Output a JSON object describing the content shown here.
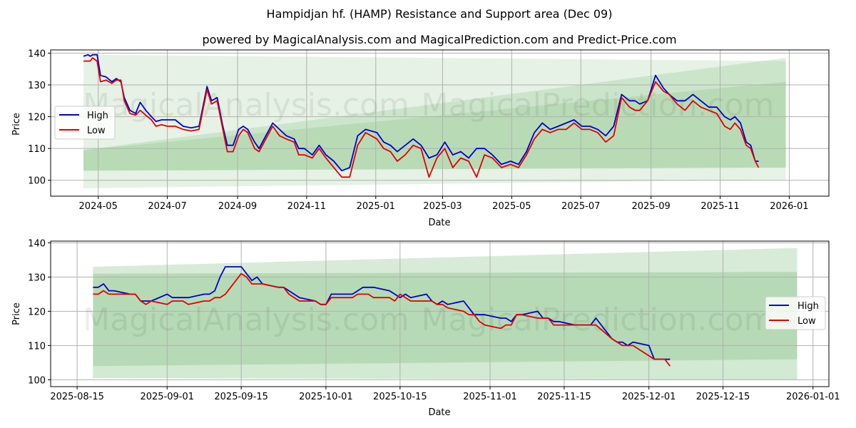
{
  "header": {
    "title": "Hampidjan hf. (HAMP) Resistance and Support area (Dec 09)",
    "subtitle": "powered by MagicalAnalysis.com and MagicalPrediction.com and Predict-Price.com"
  },
  "watermarks": [
    "MagicalAnalysis.com",
    "MagicalPrediction.com"
  ],
  "legend": {
    "high": "High",
    "low": "Low"
  },
  "colors": {
    "high": "#0000cc",
    "low": "#e00000",
    "band_outer": "#e3f0e2",
    "band_mid": "#cfe6cd",
    "band_inner": "#b9dbb8",
    "grid": "#b0b0b0"
  },
  "chart_data": [
    {
      "type": "line",
      "title": "Hampidjan hf. (HAMP) Resistance and Support area (Dec 09)",
      "xlabel": "Date",
      "ylabel": "Price",
      "ylim": [
        95,
        141
      ],
      "xlim": [
        "2024-03-20",
        "2026-02-05"
      ],
      "grid": true,
      "legend_position": "center left",
      "x_ticks": [
        "2024-05",
        "2024-07",
        "2024-09",
        "2024-11",
        "2025-01",
        "2025-03",
        "2025-05",
        "2025-07",
        "2025-09",
        "2025-11",
        "2026-01"
      ],
      "y_ticks": [
        100,
        110,
        120,
        130,
        140
      ],
      "series": [
        {
          "name": "High",
          "x": [
            "2024-04-18",
            "2024-04-22",
            "2024-04-24",
            "2024-04-26",
            "2024-04-30",
            "2024-05-03",
            "2024-05-08",
            "2024-05-13",
            "2024-05-17",
            "2024-05-21",
            "2024-05-24",
            "2024-05-29",
            "2024-06-03",
            "2024-06-07",
            "2024-06-12",
            "2024-06-17",
            "2024-06-21",
            "2024-06-26",
            "2024-07-01",
            "2024-07-08",
            "2024-07-15",
            "2024-07-22",
            "2024-07-29",
            "2024-08-05",
            "2024-08-09",
            "2024-08-14",
            "2024-08-19",
            "2024-08-23",
            "2024-08-28",
            "2024-09-02",
            "2024-09-06",
            "2024-09-10",
            "2024-09-16",
            "2024-09-20",
            "2024-09-26",
            "2024-10-02",
            "2024-10-08",
            "2024-10-14",
            "2024-10-21",
            "2024-10-25",
            "2024-10-30",
            "2024-11-06",
            "2024-11-12",
            "2024-11-18",
            "2024-11-25",
            "2024-12-02",
            "2024-12-09",
            "2024-12-16",
            "2024-12-23",
            "2025-01-02",
            "2025-01-08",
            "2025-01-14",
            "2025-01-20",
            "2025-01-27",
            "2025-02-03",
            "2025-02-10",
            "2025-02-17",
            "2025-02-24",
            "2025-03-03",
            "2025-03-10",
            "2025-03-17",
            "2025-03-24",
            "2025-03-31",
            "2025-04-07",
            "2025-04-14",
            "2025-04-22",
            "2025-04-30",
            "2025-05-07",
            "2025-05-14",
            "2025-05-21",
            "2025-05-28",
            "2025-06-04",
            "2025-06-11",
            "2025-06-18",
            "2025-06-25",
            "2025-07-02",
            "2025-07-09",
            "2025-07-16",
            "2025-07-23",
            "2025-07-30",
            "2025-08-06",
            "2025-08-13",
            "2025-08-18",
            "2025-08-22",
            "2025-08-29",
            "2025-09-05",
            "2025-09-12",
            "2025-09-17",
            "2025-09-24",
            "2025-10-01",
            "2025-10-08",
            "2025-10-15",
            "2025-10-22",
            "2025-10-29",
            "2025-11-05",
            "2025-11-10",
            "2025-11-14",
            "2025-11-19",
            "2025-11-24",
            "2025-11-28",
            "2025-12-02",
            "2025-12-05"
          ],
          "values": [
            139,
            139.5,
            139,
            139.5,
            139.5,
            133,
            132.5,
            131,
            132,
            131,
            126,
            122,
            121,
            124.5,
            122,
            120,
            118.5,
            119,
            119,
            119,
            117,
            116.5,
            117,
            129.5,
            125,
            126,
            117,
            111,
            111,
            116,
            117,
            116,
            112,
            110,
            114,
            118,
            116,
            114,
            113,
            110,
            110,
            108,
            111,
            108,
            106,
            103,
            104,
            114,
            116,
            115,
            112,
            111,
            109,
            111,
            113,
            111,
            107,
            108,
            112,
            108,
            109,
            107,
            110,
            110,
            108,
            105,
            106,
            105,
            109,
            115,
            118,
            116,
            117,
            118,
            119,
            117,
            117,
            116,
            114,
            117,
            127,
            125,
            125,
            124,
            125,
            133,
            129,
            127,
            125,
            125,
            127,
            125,
            123,
            123,
            120,
            119,
            120,
            118,
            112,
            111,
            106,
            106
          ]
        },
        {
          "name": "Low",
          "x": [
            "2024-04-18",
            "2024-04-22",
            "2024-04-24",
            "2024-04-26",
            "2024-04-30",
            "2024-05-03",
            "2024-05-08",
            "2024-05-13",
            "2024-05-17",
            "2024-05-21",
            "2024-05-24",
            "2024-05-29",
            "2024-06-03",
            "2024-06-07",
            "2024-06-12",
            "2024-06-17",
            "2024-06-21",
            "2024-06-26",
            "2024-07-01",
            "2024-07-08",
            "2024-07-15",
            "2024-07-22",
            "2024-07-29",
            "2024-08-05",
            "2024-08-09",
            "2024-08-14",
            "2024-08-19",
            "2024-08-23",
            "2024-08-28",
            "2024-09-02",
            "2024-09-06",
            "2024-09-10",
            "2024-09-16",
            "2024-09-20",
            "2024-09-26",
            "2024-10-02",
            "2024-10-08",
            "2024-10-14",
            "2024-10-21",
            "2024-10-25",
            "2024-10-30",
            "2024-11-06",
            "2024-11-12",
            "2024-11-18",
            "2024-11-25",
            "2024-12-02",
            "2024-12-09",
            "2024-12-16",
            "2024-12-23",
            "2025-01-02",
            "2025-01-08",
            "2025-01-14",
            "2025-01-20",
            "2025-01-27",
            "2025-02-03",
            "2025-02-10",
            "2025-02-17",
            "2025-02-24",
            "2025-03-03",
            "2025-03-10",
            "2025-03-17",
            "2025-03-24",
            "2025-03-31",
            "2025-04-07",
            "2025-04-14",
            "2025-04-22",
            "2025-04-30",
            "2025-05-07",
            "2025-05-14",
            "2025-05-21",
            "2025-05-28",
            "2025-06-04",
            "2025-06-11",
            "2025-06-18",
            "2025-06-25",
            "2025-07-02",
            "2025-07-09",
            "2025-07-16",
            "2025-07-23",
            "2025-07-30",
            "2025-08-06",
            "2025-08-13",
            "2025-08-18",
            "2025-08-22",
            "2025-08-29",
            "2025-09-05",
            "2025-09-12",
            "2025-09-17",
            "2025-09-24",
            "2025-10-01",
            "2025-10-08",
            "2025-10-15",
            "2025-10-22",
            "2025-10-29",
            "2025-11-05",
            "2025-11-10",
            "2025-11-14",
            "2025-11-19",
            "2025-11-24",
            "2025-11-28",
            "2025-12-02",
            "2025-12-05"
          ],
          "values": [
            137.5,
            137.5,
            137.5,
            138.5,
            137.5,
            131,
            131.5,
            130.5,
            131.5,
            131.5,
            125,
            121,
            120.5,
            122,
            120.5,
            119,
            117,
            117.5,
            117,
            117,
            116,
            115.5,
            116,
            128.5,
            124,
            125,
            116,
            109,
            109,
            114,
            116,
            115,
            110,
            109,
            113,
            117,
            114,
            113,
            112,
            108,
            108,
            107,
            110,
            107,
            104,
            101,
            101,
            111,
            115,
            113,
            110,
            109,
            106,
            108,
            111,
            110,
            101,
            107,
            110,
            104,
            107,
            106,
            101,
            108,
            107,
            104,
            105,
            104,
            108,
            113,
            116,
            115,
            116,
            116,
            118,
            116,
            116,
            115,
            112,
            114,
            126,
            123,
            122,
            122,
            125,
            131,
            128,
            127,
            124,
            122,
            125,
            123,
            122,
            121,
            117,
            116,
            118,
            116,
            111,
            110,
            106,
            104
          ]
        },
        {
          "name": "Resistance/Support band (outer)",
          "type": "area",
          "x": [
            "2024-04-18",
            "2025-12-29"
          ],
          "upper": [
            139.5,
            137.5
          ],
          "lower": [
            97.5,
            100.2
          ]
        },
        {
          "name": "Resistance/Support band (rising)",
          "type": "area",
          "x": [
            "2024-04-18",
            "2025-12-29"
          ],
          "upper": [
            109.5,
            138.5
          ],
          "lower": [
            103,
            104
          ]
        }
      ]
    },
    {
      "type": "line",
      "title": "",
      "xlabel": "Date",
      "ylabel": "Price",
      "ylim": [
        98,
        140.5
      ],
      "xlim": [
        "2025-08-10",
        "2026-01-04"
      ],
      "grid": true,
      "legend_position": "center right",
      "x_ticks": [
        "2025-08-15",
        "2025-09-01",
        "2025-09-15",
        "2025-10-01",
        "2025-10-15",
        "2025-11-01",
        "2025-11-15",
        "2025-12-01",
        "2025-12-15",
        "2026-01-01"
      ],
      "y_ticks": [
        100,
        110,
        120,
        130,
        140
      ],
      "series": [
        {
          "name": "High",
          "x": [
            "2025-08-18",
            "2025-08-19",
            "2025-08-20",
            "2025-08-21",
            "2025-08-22",
            "2025-08-25",
            "2025-08-26",
            "2025-08-27",
            "2025-08-28",
            "2025-08-29",
            "2025-09-01",
            "2025-09-02",
            "2025-09-03",
            "2025-09-04",
            "2025-09-05",
            "2025-09-08",
            "2025-09-09",
            "2025-09-10",
            "2025-09-11",
            "2025-09-12",
            "2025-09-15",
            "2025-09-16",
            "2025-09-17",
            "2025-09-18",
            "2025-09-19",
            "2025-09-22",
            "2025-09-23",
            "2025-09-24",
            "2025-09-25",
            "2025-09-26",
            "2025-09-29",
            "2025-09-30",
            "2025-10-01",
            "2025-10-02",
            "2025-10-03",
            "2025-10-06",
            "2025-10-07",
            "2025-10-08",
            "2025-10-09",
            "2025-10-10",
            "2025-10-13",
            "2025-10-14",
            "2025-10-15",
            "2025-10-16",
            "2025-10-17",
            "2025-10-20",
            "2025-10-21",
            "2025-10-22",
            "2025-10-23",
            "2025-10-24",
            "2025-10-27",
            "2025-10-28",
            "2025-10-29",
            "2025-10-30",
            "2025-10-31",
            "2025-11-03",
            "2025-11-04",
            "2025-11-05",
            "2025-11-06",
            "2025-11-07",
            "2025-11-10",
            "2025-11-11",
            "2025-11-12",
            "2025-11-13",
            "2025-11-14",
            "2025-11-17",
            "2025-11-18",
            "2025-11-19",
            "2025-11-20",
            "2025-11-21",
            "2025-11-24",
            "2025-11-25",
            "2025-11-26",
            "2025-11-27",
            "2025-11-28",
            "2025-12-01",
            "2025-12-02",
            "2025-12-03",
            "2025-12-04",
            "2025-12-05"
          ],
          "values": [
            127,
            127,
            128,
            126,
            126,
            125,
            125,
            123,
            123,
            123,
            125,
            124,
            124,
            124,
            124,
            125,
            125,
            126,
            130,
            133,
            133,
            131,
            129,
            130,
            128,
            127,
            127,
            126,
            125,
            124,
            123,
            122,
            122,
            125,
            125,
            125,
            126,
            127,
            127,
            127,
            126,
            125,
            124,
            125,
            124,
            125,
            123,
            122,
            123,
            122,
            123,
            121,
            119,
            119,
            119,
            118,
            118,
            117,
            119,
            119,
            120,
            118,
            118,
            117,
            117,
            116,
            116,
            116,
            116,
            118,
            112,
            111,
            111,
            110,
            111,
            110,
            106,
            106,
            106,
            106
          ]
        },
        {
          "name": "Low",
          "x": [
            "2025-08-18",
            "2025-08-19",
            "2025-08-20",
            "2025-08-21",
            "2025-08-22",
            "2025-08-25",
            "2025-08-26",
            "2025-08-27",
            "2025-08-28",
            "2025-08-29",
            "2025-09-01",
            "2025-09-02",
            "2025-09-03",
            "2025-09-04",
            "2025-09-05",
            "2025-09-08",
            "2025-09-09",
            "2025-09-10",
            "2025-09-11",
            "2025-09-12",
            "2025-09-15",
            "2025-09-16",
            "2025-09-17",
            "2025-09-18",
            "2025-09-19",
            "2025-09-22",
            "2025-09-23",
            "2025-09-24",
            "2025-09-25",
            "2025-09-26",
            "2025-09-29",
            "2025-09-30",
            "2025-10-01",
            "2025-10-02",
            "2025-10-03",
            "2025-10-06",
            "2025-10-07",
            "2025-10-08",
            "2025-10-09",
            "2025-10-10",
            "2025-10-13",
            "2025-10-14",
            "2025-10-15",
            "2025-10-16",
            "2025-10-17",
            "2025-10-20",
            "2025-10-21",
            "2025-10-22",
            "2025-10-23",
            "2025-10-24",
            "2025-10-27",
            "2025-10-28",
            "2025-10-29",
            "2025-10-30",
            "2025-10-31",
            "2025-11-03",
            "2025-11-04",
            "2025-11-05",
            "2025-11-06",
            "2025-11-07",
            "2025-11-10",
            "2025-11-11",
            "2025-11-12",
            "2025-11-13",
            "2025-11-14",
            "2025-11-17",
            "2025-11-18",
            "2025-11-19",
            "2025-11-20",
            "2025-11-21",
            "2025-11-24",
            "2025-11-25",
            "2025-11-26",
            "2025-11-27",
            "2025-11-28",
            "2025-12-01",
            "2025-12-02",
            "2025-12-03",
            "2025-12-04",
            "2025-12-05"
          ],
          "values": [
            125,
            125,
            126,
            125,
            125,
            125,
            125,
            123,
            122,
            123,
            122,
            123,
            123,
            123,
            122,
            123,
            123,
            124,
            124,
            125,
            131,
            130,
            128,
            128,
            128,
            127,
            127,
            125,
            124,
            123,
            123,
            122,
            122,
            124,
            124,
            124,
            125,
            125,
            125,
            124,
            124,
            123,
            125,
            124,
            123,
            123,
            123,
            122,
            122,
            121,
            120,
            119,
            119,
            117,
            116,
            115,
            116,
            116,
            119,
            119,
            118,
            118,
            118,
            116,
            116,
            116,
            116,
            116,
            116,
            116,
            112,
            111,
            110,
            110,
            110,
            107,
            106,
            106,
            106,
            104
          ]
        },
        {
          "name": "Resistance band (upper)",
          "type": "area",
          "x": [
            "2025-08-18",
            "2025-12-29"
          ],
          "upper": [
            133,
            138.5
          ],
          "lower": [
            131,
            131.5
          ]
        },
        {
          "name": "Support band (lower)",
          "type": "area",
          "x": [
            "2025-08-18",
            "2025-12-29"
          ],
          "upper": [
            104,
            106
          ],
          "lower": [
            100.5,
            100
          ]
        }
      ]
    }
  ]
}
